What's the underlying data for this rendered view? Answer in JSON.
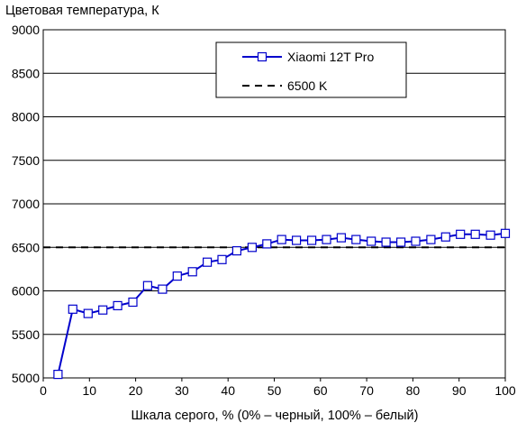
{
  "chart_data": {
    "type": "line",
    "ylabel": "Цветовая температура, К",
    "xlabel": "Шкала серого, % (0% – черный, 100% – белый)",
    "xlim": [
      0,
      100
    ],
    "ylim": [
      5000,
      9000
    ],
    "xticks": [
      0,
      10,
      20,
      30,
      40,
      50,
      60,
      70,
      80,
      90,
      100
    ],
    "yticks": [
      5000,
      5500,
      6000,
      6500,
      7000,
      7500,
      8000,
      8500,
      9000
    ],
    "grid": "horizontal",
    "legend_position": "top-right",
    "series": [
      {
        "name": "Xiaomi 12T Pro",
        "color": "#0000cc",
        "marker": "square",
        "x": [
          3.2,
          6.4,
          9.7,
          12.9,
          16.1,
          19.4,
          22.6,
          25.8,
          29.0,
          32.3,
          35.5,
          38.7,
          41.9,
          45.2,
          48.4,
          51.6,
          54.8,
          58.1,
          61.3,
          64.5,
          67.7,
          71.0,
          74.2,
          77.4,
          80.6,
          83.9,
          87.1,
          90.3,
          93.5,
          96.8,
          100.0
        ],
        "y": [
          5040,
          5790,
          5740,
          5780,
          5830,
          5870,
          6060,
          6020,
          6170,
          6220,
          6330,
          6360,
          6460,
          6500,
          6540,
          6590,
          6580,
          6580,
          6590,
          6610,
          6590,
          6570,
          6560,
          6560,
          6570,
          6590,
          6620,
          6650,
          6650,
          6640,
          6660
        ]
      },
      {
        "name": "6500 K",
        "color": "#000000",
        "style": "dashed",
        "x": [
          0,
          100
        ],
        "y": [
          6500,
          6500
        ]
      }
    ]
  }
}
